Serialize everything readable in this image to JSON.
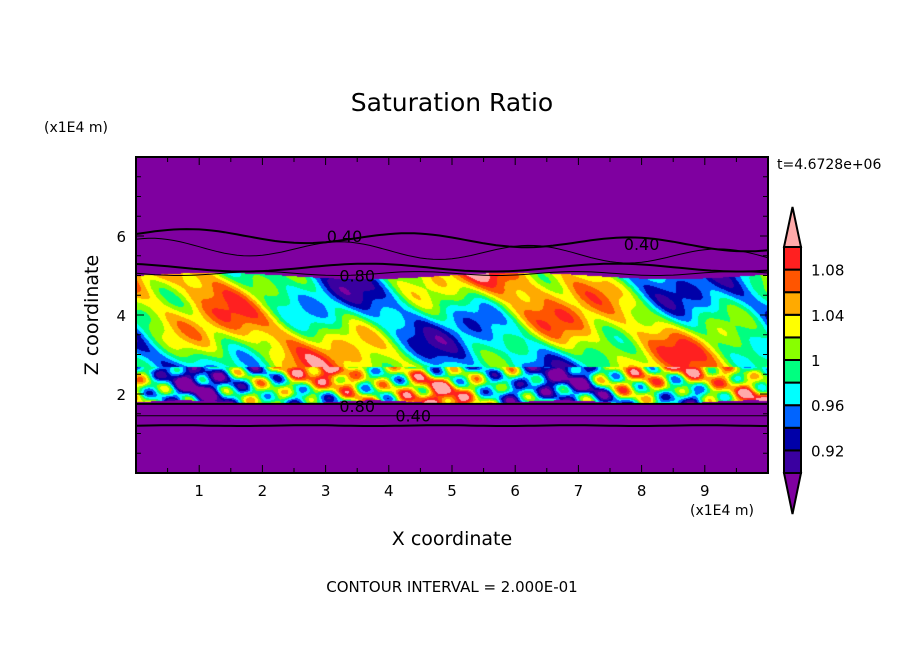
{
  "chart_data": {
    "type": "heatmap",
    "title": "Saturation Ratio",
    "xlabel": "X coordinate",
    "ylabel": "Z coordinate",
    "x_unit": "(x1E4 m)",
    "y_unit": "(x1E4 m)",
    "xlim": [
      0,
      10
    ],
    "ylim": [
      0,
      8
    ],
    "x_ticks": [
      "1",
      "2",
      "3",
      "4",
      "5",
      "6",
      "7",
      "8",
      "9"
    ],
    "y_ticks": [
      "2",
      "4",
      "6"
    ],
    "time_label": "t=4.6728e+06",
    "footer": "CONTOUR INTERVAL = 2.000E-01",
    "colorbar": {
      "levels": [
        0.9,
        0.92,
        0.94,
        0.96,
        0.98,
        1.0,
        1.02,
        1.04,
        1.06,
        1.08,
        1.1
      ],
      "tick_labels": [
        {
          "value": 0.92,
          "label": "0.92"
        },
        {
          "value": 0.96,
          "label": "0.96"
        },
        {
          "value": 1.0,
          "label": "1"
        },
        {
          "value": 1.04,
          "label": "1.04"
        },
        {
          "value": 1.08,
          "label": "1.08"
        }
      ],
      "colors": [
        "#3a00a0",
        "#0000a8",
        "#0064ff",
        "#00ffff",
        "#00ff80",
        "#88ff00",
        "#ffff00",
        "#ffaa00",
        "#ff5500",
        "#ff2020"
      ],
      "under_color": "#7f00a0",
      "over_color": "#ffaaaa",
      "extend": "both"
    },
    "contour_labels": [
      {
        "label": "0.40",
        "x": 3.3,
        "z": 6.0
      },
      {
        "label": "0.40",
        "x": 8.0,
        "z": 5.8
      },
      {
        "label": "0.80",
        "x": 3.5,
        "z": 5.0
      },
      {
        "label": "0.80",
        "x": 3.5,
        "z": 1.7
      },
      {
        "label": "0.40",
        "x": 3.5,
        "z": 1.45
      }
    ],
    "grid": false
  }
}
